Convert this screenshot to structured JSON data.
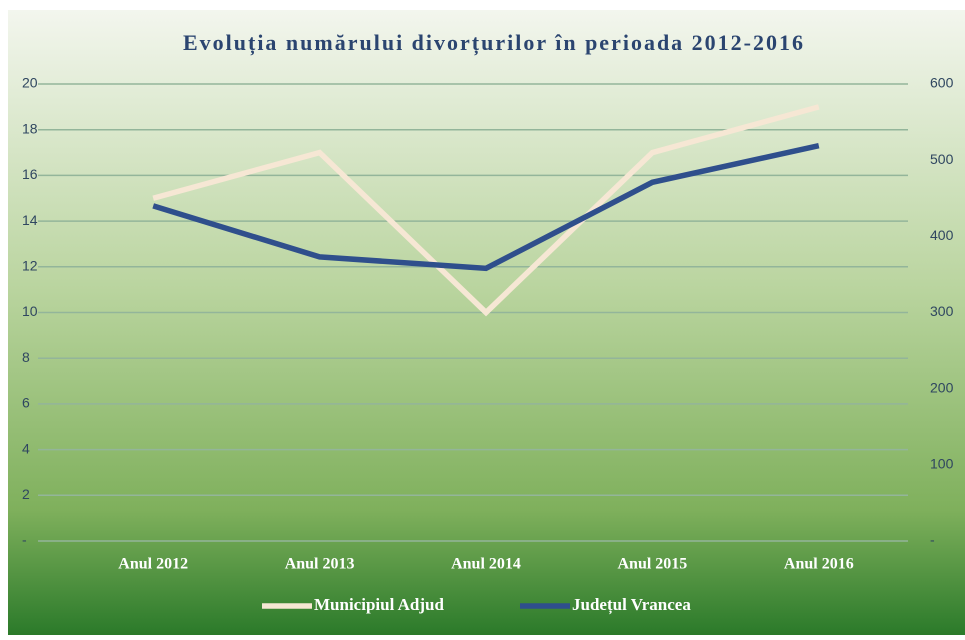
{
  "chart_data": {
    "type": "line",
    "title": "Evoluția numărului divorțurilor în perioada 2012-2016",
    "categories": [
      "Anul 2012",
      "Anul 2013",
      "Anul 2014",
      "Anul 2015",
      "Anul 2016"
    ],
    "series": [
      {
        "name": "Municipiul Adjud",
        "color": "#f6e7d4",
        "values": [
          15,
          17,
          10,
          17,
          19
        ]
      },
      {
        "name": "Județul Vrancea",
        "color": "#2f4f8c",
        "axis": "y2",
        "values": [
          440,
          373,
          358,
          471,
          519
        ]
      }
    ],
    "ylim": [
      0,
      20
    ],
    "yticks": [
      {
        "value": 0,
        "label": "-"
      },
      2,
      4,
      6,
      8,
      10,
      12,
      14,
      16,
      18,
      20
    ],
    "y2lim": [
      0,
      600
    ],
    "y2ticks": [
      {
        "value": 0,
        "label": "-"
      },
      100,
      200,
      300,
      400,
      500,
      600
    ],
    "grid": true,
    "legend": "bottom"
  }
}
